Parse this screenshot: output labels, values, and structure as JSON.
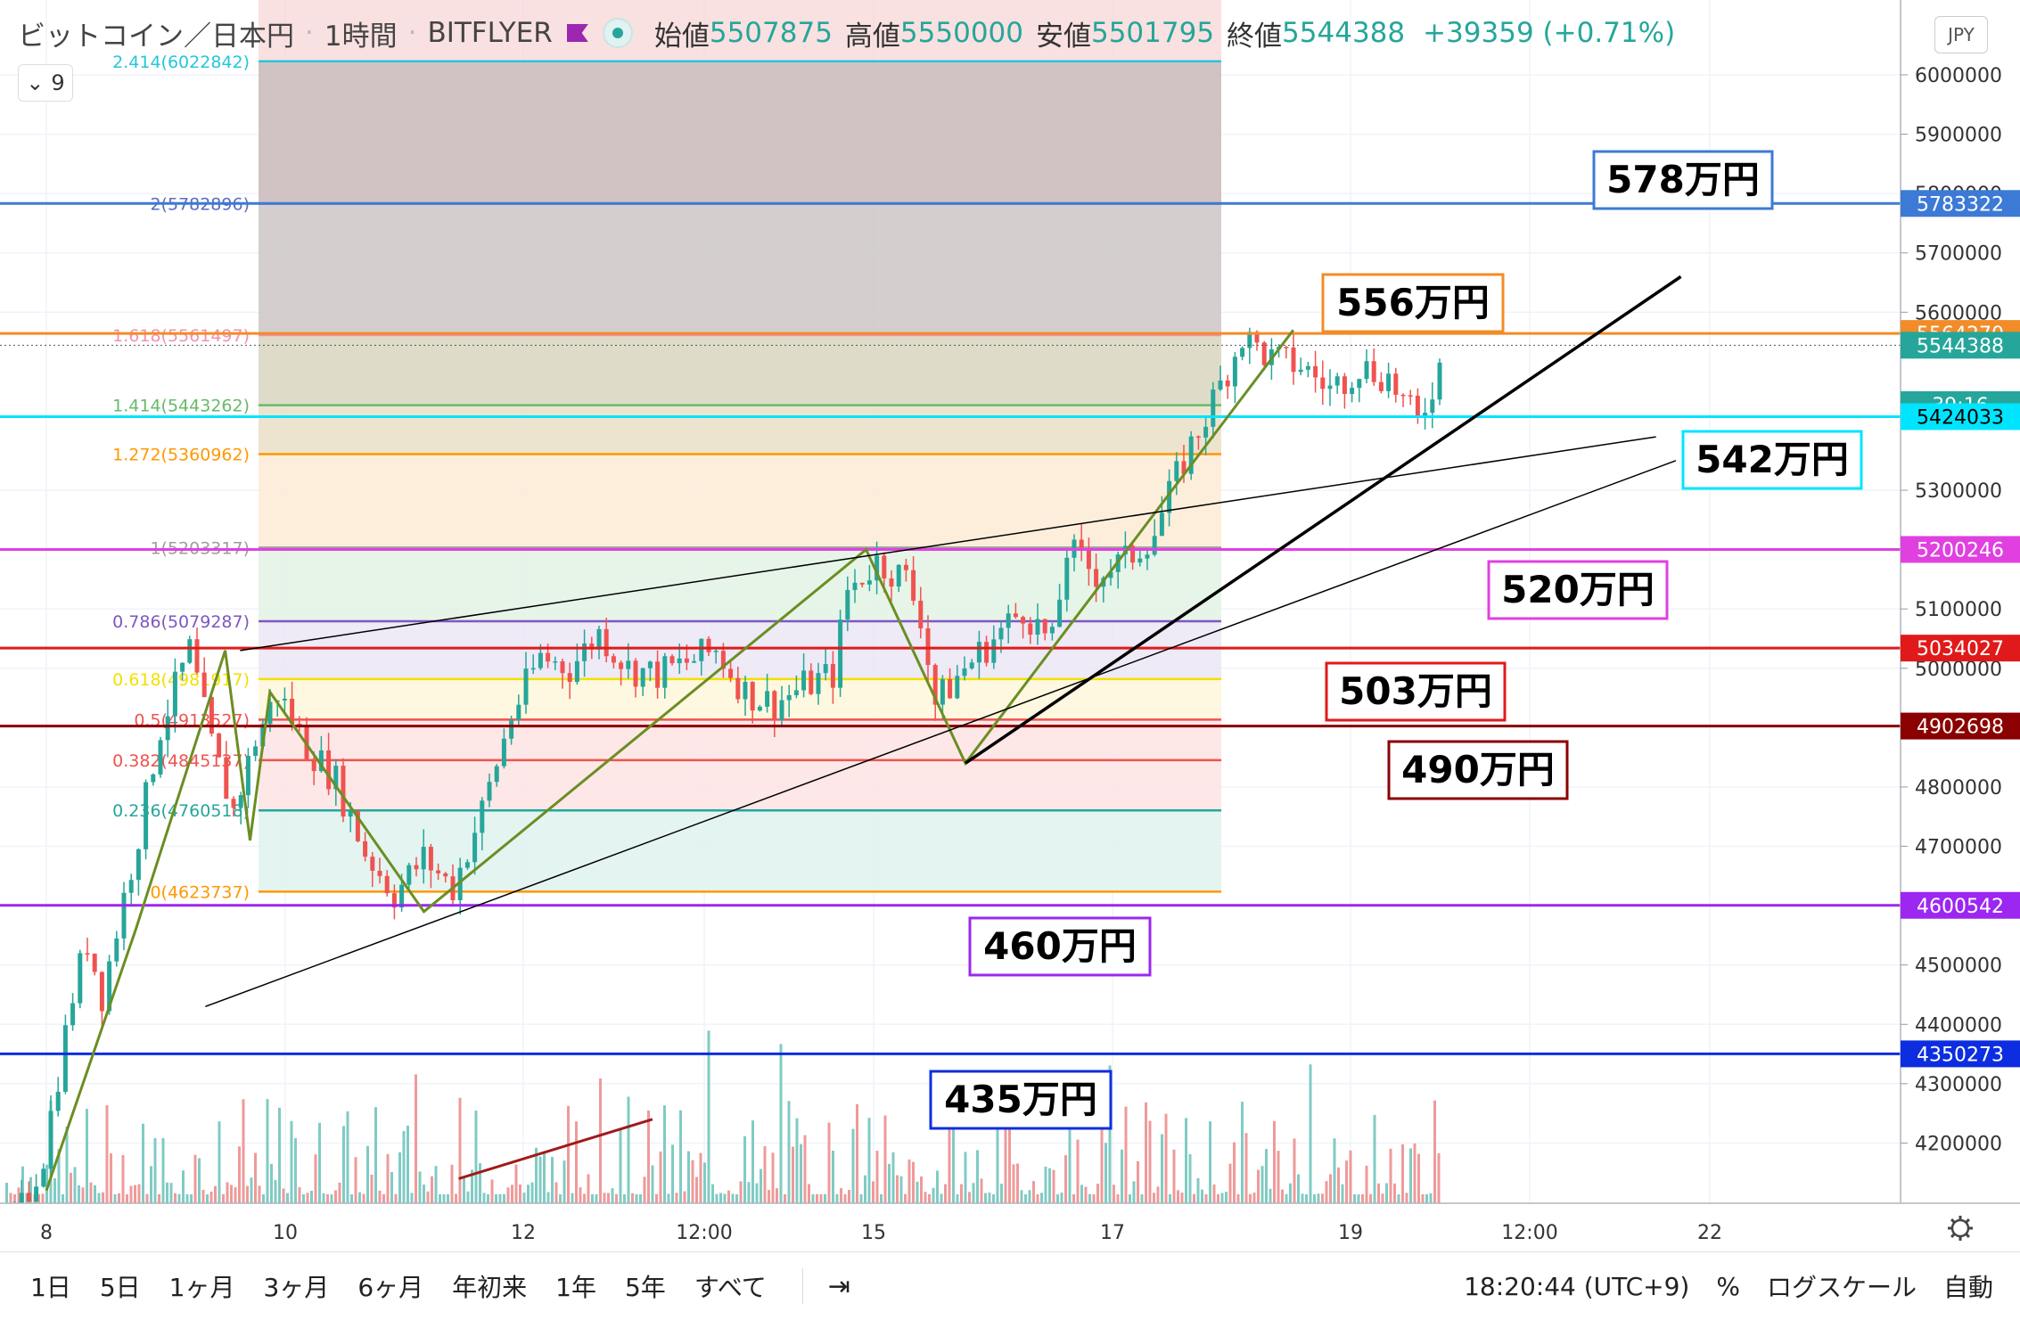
{
  "header": {
    "symbol": "ビットコイン／日本円",
    "interval": "1時間",
    "exchange": "BITFLYER",
    "open_label": "始値",
    "open": "5507875",
    "high_label": "高値",
    "high": "5550000",
    "low_label": "安値",
    "low": "5501795",
    "close_label": "終値",
    "close": "5544388",
    "change": "+39359 (+0.71%)"
  },
  "indicators_count": "9",
  "currency_button": "JPY",
  "bottom_bar": {
    "timeframes": [
      "1日",
      "5日",
      "1ヶ月",
      "3ヶ月",
      "6ヶ月",
      "年初来",
      "1年",
      "5年",
      "すべて"
    ],
    "clock": "18:20:44 (UTC+9)",
    "percent": "%",
    "log_scale": "ログスケール",
    "auto": "自動"
  },
  "icons": {
    "compare": "calendar-range-icon",
    "settings": "gear-icon",
    "collapse": "chevron-down-icon",
    "series_style": "flag-icon",
    "status": "market-status-dot-icon"
  },
  "colors": {
    "up": "#26a69a",
    "down": "#ef5350",
    "accent": "#2962ff"
  },
  "chart_data": {
    "type": "candlestick",
    "y_axis": {
      "range": [
        4140000,
        6110000
      ],
      "tick_labels": [
        "6000000",
        "5900000",
        "5800000",
        "5700000",
        "5600000",
        "5300000",
        "5200000",
        "5100000",
        "5000000",
        "4800000",
        "4700000",
        "4500000",
        "4400000",
        "4300000",
        "4200000"
      ]
    },
    "x_axis": {
      "tick_labels": [
        "8",
        "10",
        "12",
        "12:00",
        "15",
        "17",
        "19",
        "12:00",
        "22"
      ]
    },
    "price_tags": [
      {
        "value": 5783322,
        "label": "5783322",
        "color": "#3d7ad6"
      },
      {
        "value": 5564270,
        "label": "5564270",
        "color": "#f28c28"
      },
      {
        "value": 5544388,
        "label": "5544388",
        "color": "#26a69a"
      },
      {
        "value": null,
        "label": "39:16",
        "color": "#26a69a"
      },
      {
        "value": 5424033,
        "label": "5424033",
        "color": "#00e5ff",
        "text_color": "#000000"
      },
      {
        "value": 5200246,
        "label": "5200246",
        "color": "#e040e0"
      },
      {
        "value": 5034027,
        "label": "5034027",
        "color": "#e01a1a"
      },
      {
        "value": 4902698,
        "label": "4902698",
        "color": "#8b0000"
      },
      {
        "value": 4600542,
        "label": "4600542",
        "color": "#9c27f0"
      },
      {
        "value": 4350273,
        "label": "4350273",
        "color": "#0d2ee0"
      }
    ],
    "horizontal_lines": [
      {
        "value": 5783322,
        "color": "#3d7ad6"
      },
      {
        "value": 5564270,
        "color": "#f28c28"
      },
      {
        "value": 5424033,
        "color": "#00e5ff"
      },
      {
        "value": 5200246,
        "color": "#e040e0"
      },
      {
        "value": 5034027,
        "color": "#e01a1a"
      },
      {
        "value": 4902698,
        "color": "#8b0000"
      },
      {
        "value": 4600542,
        "color": "#9c27f0"
      },
      {
        "value": 4350273,
        "color": "#0d2ee0"
      }
    ],
    "annotations": [
      {
        "text": "578万円",
        "border": "#3d7ad6"
      },
      {
        "text": "556万円",
        "border": "#f28c28"
      },
      {
        "text": "542万円",
        "border": "#00e5ff"
      },
      {
        "text": "520万円",
        "border": "#e040e0"
      },
      {
        "text": "503万円",
        "border": "#e01a1a"
      },
      {
        "text": "490万円",
        "border": "#8b0000"
      },
      {
        "text": "460万円",
        "border": "#9c27f0"
      },
      {
        "text": "435万円",
        "border": "#0d2ee0"
      }
    ],
    "fibonacci": [
      {
        "level": "2.414",
        "value": 6022842,
        "label": "2.414(6022842)",
        "color": "#26c6da",
        "fill": "#c9b8b8"
      },
      {
        "level": "2",
        "value": 5782896,
        "label": "2(5782896)",
        "color": "#5c6bc0",
        "fill": "#ccc5c5"
      },
      {
        "level": "1.618",
        "value": 5561497,
        "label": "1.618(5561497)",
        "color": "#f48fb1",
        "fill": "#d8d6c0"
      },
      {
        "level": "1.414",
        "value": 5443262,
        "label": "1.414(5443262)",
        "color": "#66bb6a",
        "fill": "#eadfc8"
      },
      {
        "level": "1.272",
        "value": 5360962,
        "label": "1.272(5360962)",
        "color": "#ff9800",
        "fill": "#fdebd6"
      },
      {
        "level": "1",
        "value": 5203317,
        "label": "1(5203317)",
        "color": "#9e9e9e",
        "fill": "#e3f2e4"
      },
      {
        "level": "0.786",
        "value": 5079287,
        "label": "0.786(5079287)",
        "color": "#7e57c2",
        "fill": "#ebe6f5"
      },
      {
        "level": "0.618",
        "value": 4981917,
        "label": "0.618(4981917)",
        "color": "#f3e000",
        "fill": "#fdf7d9"
      },
      {
        "level": "0.5",
        "value": 4913527,
        "label": "0.5(4913527)",
        "color": "#ef5350",
        "fill": "#fde3e3"
      },
      {
        "level": "0.382",
        "value": 4845137,
        "label": "0.382(4845137)",
        "color": "#ef5350",
        "fill": "#fde3e3"
      },
      {
        "level": "0.236",
        "value": 4760518,
        "label": "0.236(4760518)",
        "color": "#26a69a",
        "fill": "#dff2ef"
      },
      {
        "level": "0",
        "value": 4623737,
        "label": "0(4623737)",
        "color": "#ff9800",
        "fill": null
      }
    ],
    "zigzag_points": [
      [
        "8",
        4120000
      ],
      [
        "8 18:00",
        4560000
      ],
      [
        "9 12:00",
        5030000
      ],
      [
        "9 17:00",
        4710000
      ],
      [
        "9 21:00",
        4960000
      ],
      [
        "11 04:00",
        4590000
      ],
      [
        "14 21:00",
        5200000
      ],
      [
        "15 17:00",
        4840000
      ],
      [
        "18 11:00",
        5570000
      ]
    ],
    "trend_lines": [
      {
        "from": [
          "9 15:00",
          5030000
        ],
        "to": [
          "21 12:00",
          5390000
        ],
        "color": "#000000",
        "width": 1.5
      },
      {
        "from": [
          "9 08:00",
          4430000
        ],
        "to": [
          "21 16:00",
          5350000
        ],
        "color": "#000000",
        "width": 1.5
      },
      {
        "from": [
          "15 17:00",
          4840000
        ],
        "to": [
          "21 17:00",
          5660000
        ],
        "color": "#000000",
        "width": 3.5
      },
      {
        "from": [
          "11 11:00",
          4140000
        ],
        "to": [
          "13 02:00",
          4240000
        ],
        "color": "#a11a1a",
        "width": 3
      }
    ],
    "price_path": [
      [
        0,
        4060000
      ],
      [
        4,
        4180000
      ],
      [
        8,
        4450000
      ],
      [
        10,
        4540000
      ],
      [
        12,
        4450000
      ],
      [
        14,
        4560000
      ],
      [
        17,
        4720000
      ],
      [
        20,
        4900000
      ],
      [
        24,
        5030000
      ],
      [
        27,
        4870000
      ],
      [
        30,
        4760000
      ],
      [
        33,
        4880000
      ],
      [
        36,
        4960000
      ],
      [
        40,
        4870000
      ],
      [
        44,
        4810000
      ],
      [
        48,
        4690000
      ],
      [
        52,
        4620000
      ],
      [
        56,
        4680000
      ],
      [
        60,
        4630000
      ],
      [
        64,
        4760000
      ],
      [
        68,
        4920000
      ],
      [
        72,
        5020000
      ],
      [
        76,
        5000000
      ],
      [
        80,
        5060000
      ],
      [
        84,
        5000000
      ],
      [
        88,
        4990000
      ],
      [
        92,
        5010000
      ],
      [
        96,
        5030000
      ],
      [
        100,
        4960000
      ],
      [
        104,
        4940000
      ],
      [
        108,
        4970000
      ],
      [
        112,
        4990000
      ],
      [
        114,
        5130000
      ],
      [
        118,
        5180000
      ],
      [
        122,
        5150000
      ],
      [
        124,
        5090000
      ],
      [
        126,
        4940000
      ],
      [
        130,
        5000000
      ],
      [
        134,
        5050000
      ],
      [
        138,
        5100000
      ],
      [
        140,
        5070000
      ],
      [
        142,
        5040000
      ],
      [
        144,
        5200000
      ],
      [
        148,
        5160000
      ],
      [
        152,
        5180000
      ],
      [
        156,
        5230000
      ],
      [
        160,
        5350000
      ],
      [
        164,
        5450000
      ],
      [
        168,
        5560000
      ],
      [
        172,
        5520000
      ],
      [
        176,
        5510000
      ],
      [
        180,
        5470000
      ],
      [
        184,
        5510000
      ],
      [
        188,
        5490000
      ],
      [
        192,
        5410000
      ],
      [
        196,
        5544388
      ]
    ]
  }
}
